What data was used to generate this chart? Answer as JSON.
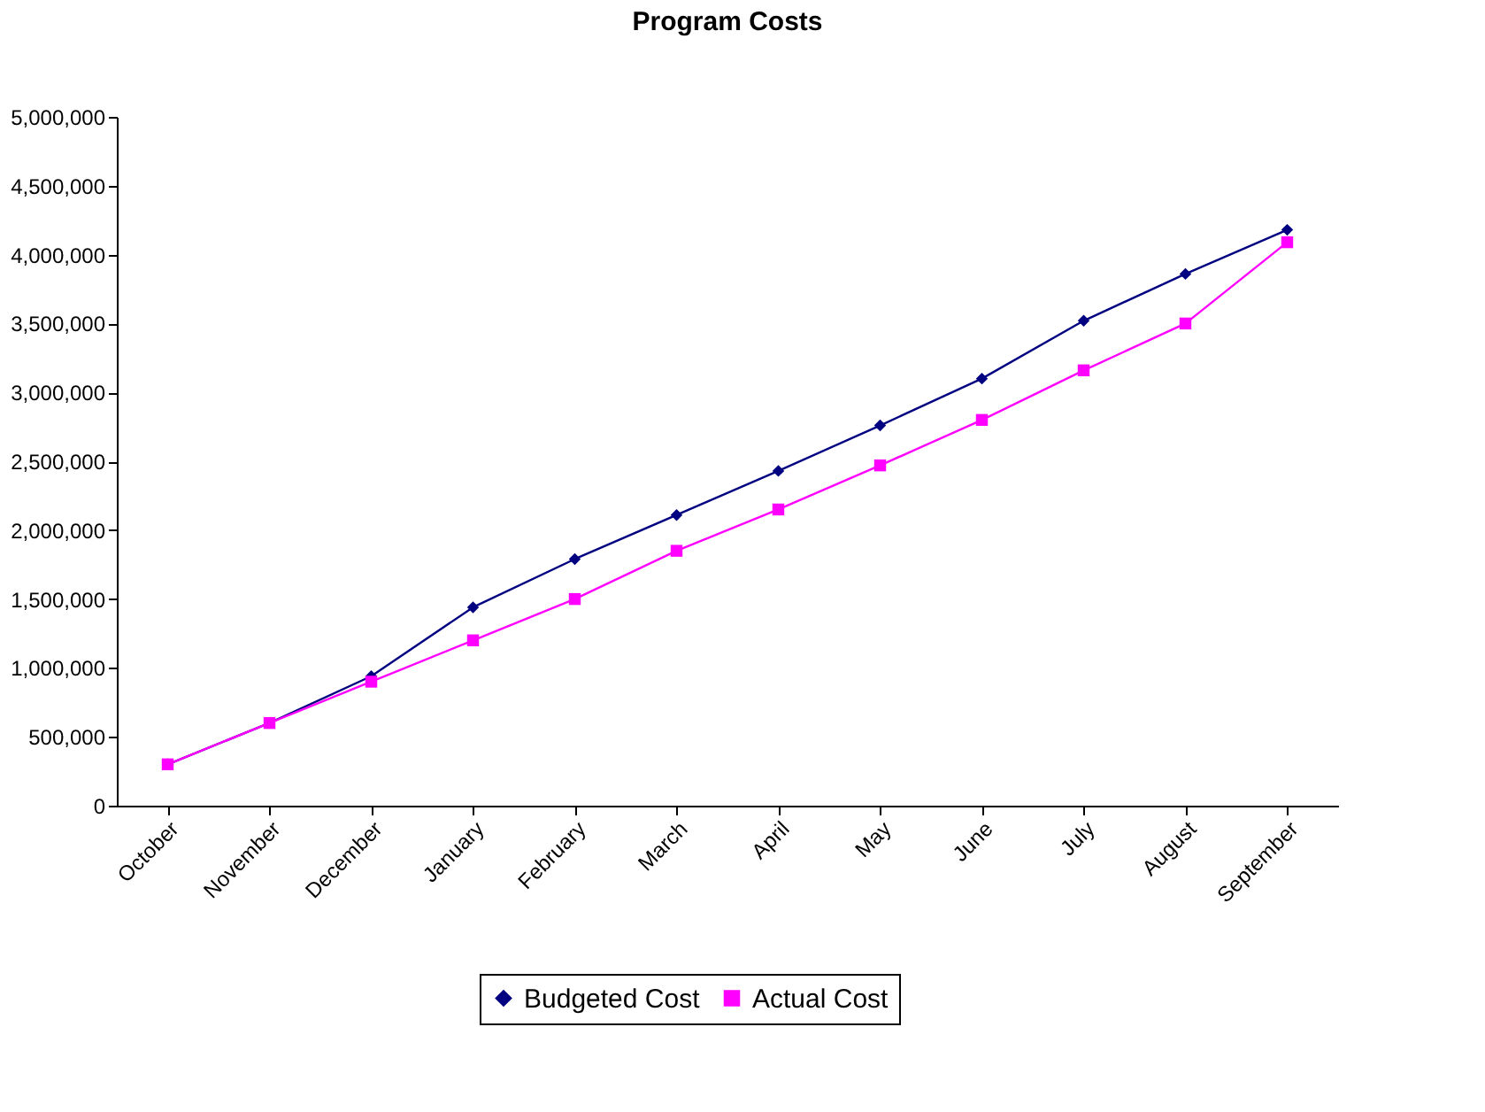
{
  "chart_data": {
    "type": "line",
    "title": "Program Costs",
    "categories": [
      "October",
      "November",
      "December",
      "January",
      "February",
      "March",
      "April",
      "May",
      "June",
      "July",
      "August",
      "September"
    ],
    "series": [
      {
        "name": "Budgeted Cost",
        "color": "#000080",
        "marker": "diamond",
        "values": [
          300000,
          600000,
          940000,
          1440000,
          1790000,
          2110000,
          2430000,
          2760000,
          3100000,
          3520000,
          3860000,
          4180000
        ]
      },
      {
        "name": "Actual Cost",
        "color": "#ff00ff",
        "marker": "square",
        "values": [
          300000,
          600000,
          900000,
          1200000,
          1500000,
          1850000,
          2150000,
          2470000,
          2800000,
          3160000,
          3500000,
          4090000
        ]
      }
    ],
    "ylim": [
      0,
      5000000
    ],
    "yticks": [
      0,
      {
        "value": 500000,
        "label": "500,000"
      },
      {
        "value": 1000000,
        "label": "1,000,000"
      },
      {
        "value": 1500000,
        "label": "1,500,000"
      },
      {
        "value": 2000000,
        "label": "2,000,000"
      },
      {
        "value": 2500000,
        "label": "2,500,000"
      },
      {
        "value": 3000000,
        "label": "3,000,000"
      },
      {
        "value": 3500000,
        "label": "3,500,000"
      },
      {
        "value": 4000000,
        "label": "4,000,000"
      },
      {
        "value": 4500000,
        "label": "4,500,000"
      },
      {
        "value": 5000000,
        "label": "5,000,000"
      }
    ],
    "grid": false,
    "legend": "bottom",
    "line_style": "solid"
  }
}
